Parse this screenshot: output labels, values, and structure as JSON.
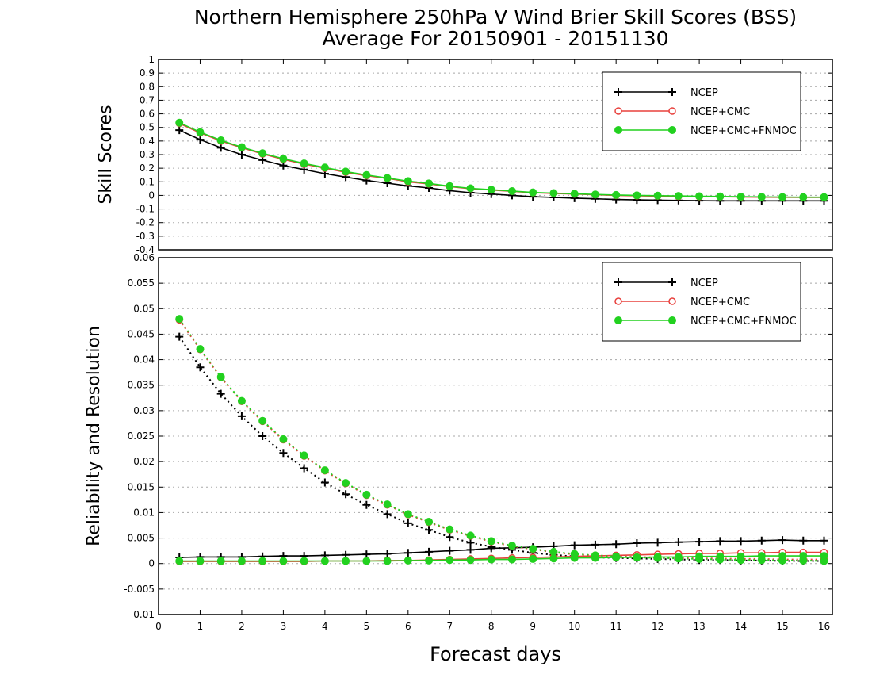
{
  "title_line1": "Northern Hemisphere 250hPa V Wind Brier Skill Scores (BSS)",
  "title_line2": "Average For 20150901 - 20151130",
  "chart_data": [
    {
      "type": "line",
      "ylabel": "Skill Scores",
      "ylim": [
        -0.4,
        1.0
      ],
      "yticks": [
        "-0.4",
        "-0.3",
        "-0.2",
        "-0.1",
        "0",
        "0.1",
        "0.2",
        "0.3",
        "0.4",
        "0.5",
        "0.6",
        "0.7",
        "0.8",
        "0.9",
        "1"
      ],
      "grid": true,
      "legend_position": "top-right",
      "x": [
        0.5,
        1,
        1.5,
        2,
        2.5,
        3,
        3.5,
        4,
        4.5,
        5,
        5.5,
        6,
        6.5,
        7,
        7.5,
        8,
        8.5,
        9,
        9.5,
        10,
        10.5,
        11,
        11.5,
        12,
        12.5,
        13,
        13.5,
        14,
        14.5,
        15,
        15.5,
        16
      ],
      "series": [
        {
          "name": "NCEP",
          "color": "#000000",
          "marker": "plus",
          "values": [
            0.48,
            0.41,
            0.35,
            0.3,
            0.26,
            0.22,
            0.19,
            0.16,
            0.135,
            0.11,
            0.09,
            0.07,
            0.055,
            0.035,
            0.02,
            0.01,
            0.0,
            -0.01,
            -0.015,
            -0.02,
            -0.025,
            -0.03,
            -0.033,
            -0.035,
            -0.037,
            -0.039,
            -0.04,
            -0.04,
            -0.04,
            -0.04,
            -0.04,
            -0.04
          ]
        },
        {
          "name": "NCEP+CMC",
          "color": "#e8403c",
          "marker": "open-circle",
          "values": [
            0.53,
            0.46,
            0.4,
            0.35,
            0.305,
            0.265,
            0.23,
            0.2,
            0.17,
            0.145,
            0.125,
            0.1,
            0.085,
            0.065,
            0.05,
            0.04,
            0.03,
            0.02,
            0.015,
            0.01,
            0.005,
            0.0,
            -0.003,
            -0.005,
            -0.007,
            -0.009,
            -0.01,
            -0.012,
            -0.013,
            -0.014,
            -0.015,
            -0.015
          ]
        },
        {
          "name": "NCEP+CMC+FNMOC",
          "color": "#22d11f",
          "marker": "filled-circle",
          "values": [
            0.535,
            0.465,
            0.405,
            0.355,
            0.31,
            0.27,
            0.235,
            0.205,
            0.175,
            0.15,
            0.128,
            0.105,
            0.088,
            0.068,
            0.052,
            0.042,
            0.032,
            0.022,
            0.017,
            0.012,
            0.007,
            0.003,
            0.0,
            -0.002,
            -0.004,
            -0.006,
            -0.008,
            -0.01,
            -0.011,
            -0.012,
            -0.013,
            -0.013
          ]
        }
      ]
    },
    {
      "type": "line",
      "ylabel": "Reliability and Resolution",
      "xlabel": "Forecast days",
      "xlim": [
        0,
        16.2
      ],
      "xticks": [
        "0",
        "1",
        "2",
        "3",
        "4",
        "5",
        "6",
        "7",
        "8",
        "9",
        "10",
        "11",
        "12",
        "13",
        "14",
        "15",
        "16"
      ],
      "ylim": [
        -0.01,
        0.06
      ],
      "yticks": [
        "-0.01",
        "-0.005",
        "0",
        "0.005",
        "0.01",
        "0.015",
        "0.02",
        "0.025",
        "0.03",
        "0.035",
        "0.04",
        "0.045",
        "0.05",
        "0.055",
        "0.06"
      ],
      "grid": true,
      "legend_position": "top-right",
      "x": [
        0.5,
        1,
        1.5,
        2,
        2.5,
        3,
        3.5,
        4,
        4.5,
        5,
        5.5,
        6,
        6.5,
        7,
        7.5,
        8,
        8.5,
        9,
        9.5,
        10,
        10.5,
        11,
        11.5,
        12,
        12.5,
        13,
        13.5,
        14,
        14.5,
        15,
        15.5,
        16
      ],
      "series": [
        {
          "name": "NCEP",
          "color": "#000000",
          "marker": "plus",
          "dash": false,
          "values": [
            0.0012,
            0.0013,
            0.0013,
            0.0013,
            0.0014,
            0.0015,
            0.0015,
            0.0016,
            0.0017,
            0.0018,
            0.0019,
            0.0021,
            0.0023,
            0.0025,
            0.0027,
            0.003,
            0.0031,
            0.0032,
            0.0034,
            0.0036,
            0.0037,
            0.0038,
            0.004,
            0.0041,
            0.0042,
            0.0043,
            0.0044,
            0.0044,
            0.0045,
            0.0046,
            0.0045,
            0.0045
          ]
        },
        {
          "name": "NCEP",
          "color": "#000000",
          "marker": "plus",
          "dash": true,
          "values": [
            0.0445,
            0.0385,
            0.0333,
            0.0289,
            0.025,
            0.0217,
            0.0187,
            0.0159,
            0.0136,
            0.0115,
            0.0097,
            0.0079,
            0.0066,
            0.0052,
            0.0041,
            0.0033,
            0.0027,
            0.0021,
            0.0017,
            0.0014,
            0.0012,
            0.0011,
            0.001,
            0.0009,
            0.0008,
            0.0007,
            0.0007,
            0.0006,
            0.0006,
            0.0005,
            0.0005,
            0.0005
          ]
        },
        {
          "name": "NCEP+CMC",
          "color": "#e8403c",
          "marker": "open-circle",
          "dash": false,
          "values": [
            0.0004,
            0.0004,
            0.0004,
            0.0004,
            0.0004,
            0.0004,
            0.0004,
            0.0005,
            0.0005,
            0.0005,
            0.0006,
            0.0006,
            0.0007,
            0.0008,
            0.0009,
            0.001,
            0.0011,
            0.0012,
            0.0013,
            0.0014,
            0.0015,
            0.0016,
            0.0017,
            0.0018,
            0.0019,
            0.002,
            0.002,
            0.0021,
            0.0021,
            0.0022,
            0.0022,
            0.0022
          ]
        },
        {
          "name": "NCEP+CMC",
          "color": "#e8403c",
          "marker": "open-circle",
          "dash": true,
          "values": [
            0.0478,
            0.042,
            0.0365,
            0.0318,
            0.0279,
            0.0243,
            0.0211,
            0.0182,
            0.0157,
            0.0134,
            0.0115,
            0.0096,
            0.0081,
            0.0066,
            0.0054,
            0.0043,
            0.0034,
            0.0028,
            0.0022,
            0.0018,
            0.0016,
            0.0014,
            0.0013,
            0.0012,
            0.0011,
            0.001,
            0.001,
            0.0009,
            0.0009,
            0.0008,
            0.0008,
            0.0008
          ]
        },
        {
          "name": "NCEP+CMC+FNMOC",
          "color": "#22d11f",
          "marker": "filled-circle",
          "dash": false,
          "values": [
            0.0005,
            0.0005,
            0.0005,
            0.0005,
            0.0005,
            0.0005,
            0.0005,
            0.0005,
            0.0005,
            0.0005,
            0.0005,
            0.0006,
            0.0006,
            0.0007,
            0.0007,
            0.0008,
            0.0008,
            0.0009,
            0.001,
            0.0011,
            0.0011,
            0.0012,
            0.0012,
            0.0013,
            0.0013,
            0.0014,
            0.0014,
            0.0014,
            0.0015,
            0.0015,
            0.0015,
            0.0015
          ]
        },
        {
          "name": "NCEP+CMC+FNMOC",
          "color": "#22d11f",
          "marker": "filled-circle",
          "dash": true,
          "values": [
            0.048,
            0.0421,
            0.0366,
            0.0319,
            0.028,
            0.0244,
            0.0212,
            0.0183,
            0.0158,
            0.0135,
            0.0116,
            0.0097,
            0.0082,
            0.0067,
            0.0055,
            0.0044,
            0.0035,
            0.0029,
            0.0023,
            0.0019,
            0.0016,
            0.0014,
            0.0012,
            0.0011,
            0.001,
            0.0009,
            0.0008,
            0.0007,
            0.0007,
            0.0006,
            0.0006,
            0.0005
          ]
        }
      ]
    }
  ]
}
